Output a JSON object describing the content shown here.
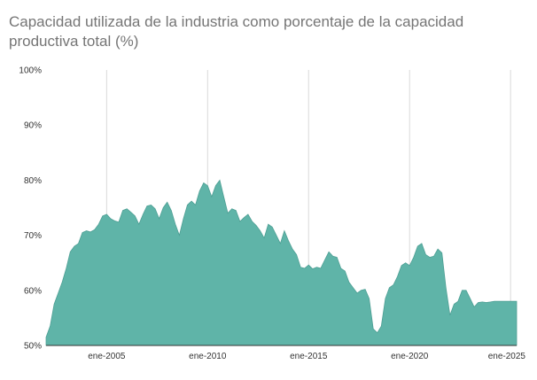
{
  "chart_data": {
    "type": "area",
    "title": "Capacidad utilizada de la industria como porcentaje de la capacidad productiva total (%)",
    "xlabel": "",
    "ylabel": "",
    "ylim": [
      50,
      100
    ],
    "y_ticks": [
      "100%",
      "90%",
      "80%",
      "70%",
      "60%",
      "50%"
    ],
    "y_tick_values": [
      100,
      90,
      80,
      70,
      60,
      50
    ],
    "x_ticks": [
      "ene-2005",
      "ene-2010",
      "ene-2015",
      "ene-2020",
      "ene-2025"
    ],
    "x_tick_values": [
      2005,
      2010,
      2015,
      2020,
      2025
    ],
    "xlim": [
      2002.0,
      2025.3
    ],
    "grid": "vertical",
    "color": "#5fb4a8",
    "x": [
      2002.0,
      2002.2,
      2002.4,
      2002.6,
      2002.8,
      2003.0,
      2003.2,
      2003.4,
      2003.6,
      2003.8,
      2004.0,
      2004.2,
      2004.4,
      2004.6,
      2004.8,
      2005.0,
      2005.2,
      2005.4,
      2005.6,
      2005.8,
      2006.0,
      2006.2,
      2006.4,
      2006.6,
      2006.8,
      2007.0,
      2007.2,
      2007.4,
      2007.6,
      2007.8,
      2008.0,
      2008.2,
      2008.4,
      2008.6,
      2008.8,
      2009.0,
      2009.2,
      2009.4,
      2009.6,
      2009.8,
      2010.0,
      2010.2,
      2010.4,
      2010.6,
      2010.8,
      2011.0,
      2011.2,
      2011.4,
      2011.6,
      2011.8,
      2012.0,
      2012.2,
      2012.4,
      2012.6,
      2012.8,
      2013.0,
      2013.2,
      2013.4,
      2013.6,
      2013.8,
      2014.0,
      2014.2,
      2014.4,
      2014.6,
      2014.8,
      2015.0,
      2015.2,
      2015.4,
      2015.6,
      2015.8,
      2016.0,
      2016.2,
      2016.4,
      2016.6,
      2016.8,
      2017.0,
      2017.2,
      2017.4,
      2017.6,
      2017.8,
      2018.0,
      2018.2,
      2018.4,
      2018.6,
      2018.8,
      2019.0,
      2019.2,
      2019.4,
      2019.6,
      2019.8,
      2020.0,
      2020.2,
      2020.4,
      2020.6,
      2020.8,
      2021.0,
      2021.2,
      2021.4,
      2021.6,
      2021.8,
      2022.0,
      2022.2,
      2022.4,
      2022.6,
      2022.8,
      2023.0,
      2023.2,
      2023.4,
      2023.6,
      2023.8,
      2024.0,
      2024.2,
      2024.4,
      2024.6,
      2024.8,
      2025.0,
      2025.3
    ],
    "values": [
      51.5,
      53.5,
      57.5,
      59.5,
      61.5,
      64.0,
      67.0,
      68.0,
      68.5,
      70.5,
      70.8,
      70.6,
      71.0,
      72.0,
      73.5,
      73.8,
      73.0,
      72.6,
      72.4,
      74.5,
      74.8,
      74.2,
      73.5,
      72.0,
      73.8,
      75.3,
      75.5,
      74.8,
      73.0,
      75.0,
      76.0,
      74.5,
      72.0,
      70.0,
      73.0,
      75.5,
      76.2,
      75.5,
      78.0,
      79.5,
      79.0,
      77.0,
      79.0,
      80.0,
      77.0,
      74.0,
      74.8,
      74.5,
      72.5,
      73.2,
      73.8,
      72.5,
      71.8,
      70.8,
      69.5,
      72.0,
      71.5,
      70.0,
      68.5,
      70.8,
      69.0,
      67.5,
      66.5,
      64.2,
      64.0,
      64.6,
      63.9,
      64.2,
      64.0,
      65.5,
      67.0,
      66.2,
      66.0,
      64.0,
      63.5,
      61.5,
      60.5,
      59.5,
      60.0,
      60.2,
      58.5,
      53.0,
      52.3,
      53.5,
      58.5,
      60.5,
      61.0,
      62.5,
      64.5,
      65.0,
      64.5,
      66.0,
      68.0,
      68.5,
      66.5,
      66.0,
      66.2,
      67.5,
      66.8,
      60.5,
      55.5,
      57.5,
      58.0,
      60.0,
      60.0,
      58.5,
      57.0,
      57.8,
      57.9,
      57.8,
      57.9,
      58.0,
      58.0,
      58.0,
      58.0,
      58.0,
      58.0
    ]
  }
}
